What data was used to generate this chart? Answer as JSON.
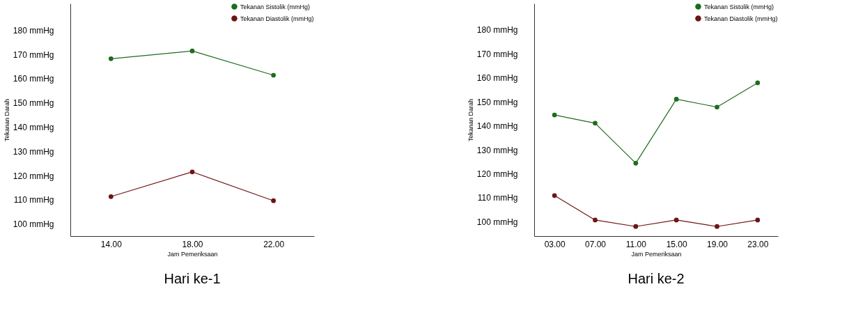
{
  "chart_data": [
    {
      "type": "line",
      "title": "Hari ke-1",
      "xlabel": "Jam Pemeriksaan",
      "ylabel": "Tekanan Darah",
      "categories": [
        "14.00",
        "18.00",
        "22.00"
      ],
      "series": [
        {
          "name": "Tekanan Sistolik (mmHg)",
          "color": "#1f6b1f",
          "values": [
            168.2,
            171.4,
            161.4
          ]
        },
        {
          "name": "Tekanan Diastolik (mmHg)",
          "color": "#6e1414",
          "values": [
            111.3,
            121.5,
            109.6
          ]
        }
      ],
      "ylim": [
        95,
        191
      ],
      "yticks": [
        {
          "value": 100,
          "label": "100 mmHg"
        },
        {
          "value": 110,
          "label": "110 mmHg"
        },
        {
          "value": 120,
          "label": "120 mmHg"
        },
        {
          "value": 130,
          "label": "130 mmHg"
        },
        {
          "value": 140,
          "label": "140 mmHg"
        },
        {
          "value": 150,
          "label": "150 mmHg"
        },
        {
          "value": 160,
          "label": "160 mmHg"
        },
        {
          "value": 170,
          "label": "170 mmHg"
        },
        {
          "value": 180,
          "label": "180 mmHg"
        }
      ],
      "grid": false,
      "legend": "top right",
      "marker": "circle",
      "line_style": "solid"
    },
    {
      "type": "line",
      "title": "Hari ke-2",
      "xlabel": "Jam Pemeriksaan",
      "ylabel": "Tekanan Darah",
      "categories": [
        "03.00",
        "07.00",
        "11.00",
        "15.00",
        "19.00",
        "23.00"
      ],
      "series": [
        {
          "name": "Tekanan Sistolik (mmHg)",
          "color": "#1f6b1f",
          "values": [
            144.5,
            141.1,
            124.4,
            151.1,
            147.8,
            157.9
          ]
        },
        {
          "name": "Tekanan Diastolik (mmHg)",
          "color": "#6e1414",
          "values": [
            110.9,
            100.7,
            98.0,
            100.7,
            98.0,
            100.7
          ]
        }
      ],
      "ylim": [
        94,
        191
      ],
      "yticks": [
        {
          "value": 100,
          "label": "100 mmHg"
        },
        {
          "value": 110,
          "label": "110 mmHg"
        },
        {
          "value": 120,
          "label": "120 mmHg"
        },
        {
          "value": 130,
          "label": "130 mmHg"
        },
        {
          "value": 140,
          "label": "140 mmHg"
        },
        {
          "value": 150,
          "label": "150 mmHg"
        },
        {
          "value": 160,
          "label": "160 mmHg"
        },
        {
          "value": 170,
          "label": "170 mmHg"
        },
        {
          "value": 180,
          "label": "180 mmHg"
        }
      ],
      "grid": false,
      "legend": "top right",
      "marker": "circle",
      "line_style": "solid"
    }
  ]
}
